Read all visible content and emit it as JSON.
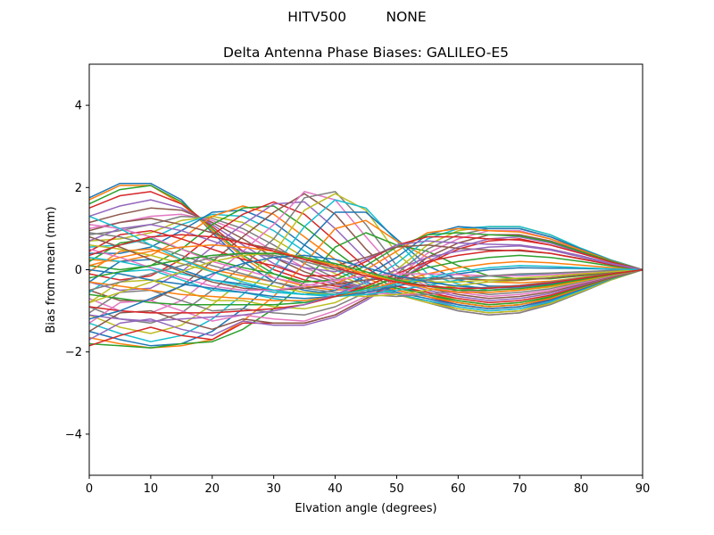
{
  "suptitle": "HITV500         NONE",
  "chart_data": {
    "type": "line",
    "title": "Delta Antenna Phase Biases: GALILEO-E5",
    "xlabel": "Elvation angle (degrees)",
    "ylabel": "Bias from mean (mm)",
    "xlim": [
      0,
      90
    ],
    "ylim": [
      -5,
      5
    ],
    "xticks": [
      0,
      10,
      20,
      30,
      40,
      50,
      60,
      70,
      80,
      90
    ],
    "yticks": [
      -4,
      -2,
      0,
      2,
      4
    ],
    "ytick_labels": [
      "−4",
      "−2",
      "0",
      "2",
      "4"
    ],
    "grid": false,
    "legend": "none",
    "x": [
      0,
      5,
      10,
      15,
      20,
      25,
      30,
      35,
      40,
      45,
      50,
      55,
      60,
      65,
      70,
      75,
      80,
      85,
      90
    ],
    "colors": [
      "#1f77b4",
      "#ff7f0e",
      "#2ca02c",
      "#d62728",
      "#9467bd",
      "#8c564b",
      "#e377c2",
      "#7f7f7f",
      "#bcbd22",
      "#17becf"
    ],
    "series": [
      {
        "values": [
          1.75,
          2.1,
          2.1,
          1.7,
          0.9,
          0.2,
          -0.3,
          -0.5,
          -0.6,
          -0.5,
          -0.4,
          -0.6,
          -0.8,
          -0.9,
          -0.85,
          -0.7,
          -0.45,
          -0.2,
          0
        ]
      },
      {
        "values": [
          1.7,
          2.05,
          2.05,
          1.6,
          0.95,
          0.3,
          -0.2,
          -0.4,
          -0.5,
          -0.45,
          -0.4,
          -0.55,
          -0.75,
          -0.85,
          -0.8,
          -0.65,
          -0.42,
          -0.18,
          0
        ]
      },
      {
        "values": [
          1.6,
          1.95,
          2.05,
          1.65,
          1.0,
          0.35,
          -0.1,
          -0.35,
          -0.45,
          -0.45,
          -0.45,
          -0.6,
          -0.8,
          -0.9,
          -0.85,
          -0.68,
          -0.44,
          -0.2,
          0
        ]
      },
      {
        "values": [
          1.5,
          1.8,
          1.9,
          1.6,
          1.05,
          0.45,
          0.0,
          -0.25,
          -0.4,
          -0.45,
          -0.5,
          -0.65,
          -0.85,
          -0.95,
          -0.9,
          -0.72,
          -0.46,
          -0.2,
          0
        ]
      },
      {
        "values": [
          1.3,
          1.55,
          1.7,
          1.5,
          1.1,
          0.6,
          0.15,
          -0.15,
          -0.35,
          -0.45,
          -0.55,
          -0.7,
          -0.9,
          -1.0,
          -0.95,
          -0.75,
          -0.48,
          -0.22,
          0
        ]
      },
      {
        "values": [
          1.15,
          1.35,
          1.5,
          1.45,
          1.15,
          0.75,
          0.3,
          -0.05,
          -0.3,
          -0.45,
          -0.6,
          -0.75,
          -0.95,
          -1.05,
          -1.0,
          -0.8,
          -0.5,
          -0.22,
          0
        ]
      },
      {
        "values": [
          1.0,
          1.15,
          1.3,
          1.35,
          1.2,
          0.9,
          0.45,
          0.05,
          -0.25,
          -0.45,
          -0.6,
          -0.8,
          -1.0,
          -1.1,
          -1.05,
          -0.82,
          -0.52,
          -0.23,
          0
        ]
      },
      {
        "values": [
          0.85,
          0.95,
          1.1,
          1.3,
          1.25,
          1.0,
          0.6,
          0.15,
          -0.2,
          -0.45,
          -0.6,
          -0.8,
          -1.0,
          -1.1,
          -1.05,
          -0.85,
          -0.55,
          -0.24,
          0
        ]
      },
      {
        "values": [
          0.7,
          0.75,
          0.9,
          1.2,
          1.3,
          1.15,
          0.75,
          0.3,
          -0.1,
          -0.4,
          -0.6,
          -0.8,
          -0.95,
          -1.05,
          -1.0,
          -0.82,
          -0.53,
          -0.24,
          0
        ]
      },
      {
        "values": [
          0.55,
          0.6,
          0.75,
          1.1,
          1.35,
          1.3,
          0.95,
          0.45,
          0.0,
          -0.35,
          -0.6,
          -0.75,
          -0.9,
          -1.0,
          -0.95,
          -0.78,
          -0.5,
          -0.22,
          0
        ]
      },
      {
        "values": [
          0.4,
          0.4,
          0.55,
          0.95,
          1.4,
          1.45,
          1.15,
          0.6,
          0.1,
          -0.3,
          -0.55,
          -0.7,
          -0.85,
          -0.95,
          -0.9,
          -0.74,
          -0.48,
          -0.21,
          0
        ]
      },
      {
        "values": [
          0.25,
          0.2,
          0.35,
          0.75,
          1.3,
          1.55,
          1.35,
          0.8,
          0.25,
          -0.2,
          -0.5,
          -0.65,
          -0.8,
          -0.9,
          -0.85,
          -0.7,
          -0.45,
          -0.2,
          0
        ]
      },
      {
        "values": [
          0.1,
          0.0,
          0.1,
          0.5,
          1.1,
          1.5,
          1.55,
          1.05,
          0.45,
          -0.1,
          -0.45,
          -0.6,
          -0.75,
          -0.85,
          -0.8,
          -0.66,
          -0.43,
          -0.19,
          0
        ]
      },
      {
        "values": [
          -0.1,
          -0.25,
          -0.15,
          0.25,
          0.85,
          1.35,
          1.65,
          1.35,
          0.7,
          0.05,
          -0.4,
          -0.55,
          -0.7,
          -0.8,
          -0.75,
          -0.62,
          -0.4,
          -0.18,
          0
        ]
      },
      {
        "values": [
          -0.3,
          -0.5,
          -0.45,
          -0.05,
          0.55,
          1.1,
          1.6,
          1.65,
          1.0,
          0.25,
          -0.3,
          -0.5,
          -0.65,
          -0.75,
          -0.7,
          -0.58,
          -0.38,
          -0.17,
          0
        ]
      },
      {
        "values": [
          -0.5,
          -0.75,
          -0.75,
          -0.4,
          0.2,
          0.8,
          1.4,
          1.85,
          1.35,
          0.5,
          -0.2,
          -0.45,
          -0.6,
          -0.7,
          -0.65,
          -0.54,
          -0.35,
          -0.16,
          0
        ]
      },
      {
        "values": [
          -0.7,
          -1.0,
          -1.05,
          -0.75,
          -0.15,
          0.45,
          1.1,
          1.9,
          1.7,
          0.8,
          -0.05,
          -0.4,
          -0.55,
          -0.65,
          -0.6,
          -0.5,
          -0.33,
          -0.15,
          0
        ]
      },
      {
        "values": [
          -0.9,
          -1.2,
          -1.3,
          -1.05,
          -0.5,
          0.1,
          0.75,
          1.75,
          1.9,
          1.1,
          0.1,
          -0.35,
          -0.5,
          -0.6,
          -0.55,
          -0.46,
          -0.3,
          -0.14,
          0
        ]
      },
      {
        "values": [
          -1.1,
          -1.4,
          -1.55,
          -1.35,
          -0.85,
          -0.25,
          0.4,
          1.45,
          1.85,
          1.45,
          0.4,
          -0.25,
          -0.45,
          -0.55,
          -0.5,
          -0.42,
          -0.28,
          -0.13,
          0
        ]
      },
      {
        "values": [
          -1.3,
          -1.55,
          -1.75,
          -1.6,
          -1.2,
          -0.6,
          0.05,
          1.05,
          1.7,
          1.5,
          0.7,
          -0.1,
          -0.35,
          -0.5,
          -0.45,
          -0.38,
          -0.25,
          -0.12,
          0
        ]
      },
      {
        "values": [
          -1.5,
          -1.7,
          -1.85,
          -1.8,
          -1.5,
          -0.95,
          -0.3,
          0.6,
          1.4,
          1.4,
          0.75,
          0.1,
          -0.25,
          -0.4,
          -0.4,
          -0.33,
          -0.22,
          -0.1,
          0
        ]
      },
      {
        "values": [
          -1.65,
          -1.8,
          -1.9,
          -1.85,
          -1.7,
          -1.25,
          -0.65,
          0.15,
          1.0,
          1.2,
          0.7,
          0.3,
          -0.1,
          -0.3,
          -0.32,
          -0.28,
          -0.19,
          -0.09,
          0
        ]
      },
      {
        "values": [
          -1.8,
          -1.85,
          -1.9,
          -1.8,
          -1.75,
          -1.45,
          -0.95,
          -0.3,
          0.55,
          0.9,
          0.6,
          0.45,
          0.1,
          -0.15,
          -0.22,
          -0.22,
          -0.15,
          -0.07,
          0
        ]
      },
      {
        "values": [
          -1.85,
          -1.6,
          -1.4,
          -1.6,
          -1.7,
          -1.3,
          -1.3,
          -1.3,
          -1.1,
          -0.7,
          -0.3,
          0.15,
          0.5,
          0.7,
          0.75,
          0.6,
          0.4,
          0.18,
          0
        ]
      },
      {
        "values": [
          -1.7,
          -1.3,
          -1.2,
          -1.45,
          -1.6,
          -1.25,
          -1.35,
          -1.35,
          -1.15,
          -0.75,
          -0.3,
          0.2,
          0.55,
          0.75,
          0.8,
          0.65,
          0.42,
          0.19,
          0
        ]
      },
      {
        "values": [
          -1.5,
          -1.05,
          -1.0,
          -1.25,
          -1.45,
          -1.2,
          -1.3,
          -1.3,
          -1.1,
          -0.7,
          -0.25,
          0.3,
          0.65,
          0.85,
          0.85,
          0.7,
          0.45,
          0.2,
          0
        ]
      },
      {
        "values": [
          -1.3,
          -0.8,
          -0.75,
          -1.0,
          -1.25,
          -1.1,
          -1.2,
          -1.25,
          -1.0,
          -0.65,
          -0.2,
          0.4,
          0.75,
          0.95,
          0.95,
          0.75,
          0.48,
          0.21,
          0
        ]
      },
      {
        "values": [
          -1.05,
          -0.55,
          -0.5,
          -0.75,
          -1.0,
          -0.95,
          -1.05,
          -1.1,
          -0.9,
          -0.55,
          -0.1,
          0.5,
          0.85,
          1.0,
          1.0,
          0.8,
          0.5,
          0.22,
          0
        ]
      },
      {
        "values": [
          -0.8,
          -0.3,
          -0.25,
          -0.5,
          -0.75,
          -0.75,
          -0.9,
          -0.95,
          -0.8,
          -0.45,
          0.0,
          0.6,
          0.95,
          1.05,
          1.05,
          0.85,
          0.52,
          0.23,
          0
        ]
      },
      {
        "values": [
          -0.55,
          -0.05,
          0.0,
          -0.25,
          -0.5,
          -0.55,
          -0.7,
          -0.8,
          -0.65,
          -0.3,
          0.15,
          0.75,
          1.0,
          1.05,
          1.05,
          0.85,
          0.52,
          0.23,
          0
        ]
      },
      {
        "values": [
          -0.3,
          0.2,
          0.25,
          0.0,
          -0.25,
          -0.35,
          -0.5,
          -0.6,
          -0.5,
          -0.15,
          0.3,
          0.85,
          1.05,
          1.0,
          1.0,
          0.8,
          0.5,
          0.22,
          0
        ]
      },
      {
        "values": [
          -0.05,
          0.45,
          0.5,
          0.25,
          0.0,
          -0.15,
          -0.3,
          -0.45,
          -0.35,
          0.0,
          0.45,
          0.9,
          1.0,
          0.95,
          0.92,
          0.75,
          0.48,
          0.21,
          0
        ]
      },
      {
        "values": [
          0.2,
          0.65,
          0.75,
          0.5,
          0.25,
          0.05,
          -0.1,
          -0.3,
          -0.25,
          0.1,
          0.55,
          0.85,
          0.9,
          0.85,
          0.82,
          0.68,
          0.44,
          0.2,
          0
        ]
      },
      {
        "values": [
          0.45,
          0.85,
          0.95,
          0.75,
          0.5,
          0.25,
          0.1,
          -0.15,
          -0.15,
          0.2,
          0.6,
          0.8,
          0.8,
          0.75,
          0.72,
          0.6,
          0.4,
          0.18,
          0
        ]
      },
      {
        "values": [
          0.7,
          1.0,
          1.1,
          0.95,
          0.7,
          0.45,
          0.3,
          0.05,
          -0.05,
          0.25,
          0.6,
          0.7,
          0.65,
          0.62,
          0.6,
          0.5,
          0.34,
          0.15,
          0
        ]
      },
      {
        "values": [
          0.95,
          1.15,
          1.25,
          1.1,
          0.9,
          0.65,
          0.5,
          0.25,
          0.1,
          0.3,
          0.55,
          0.6,
          0.52,
          0.48,
          0.46,
          0.4,
          0.27,
          0.12,
          0
        ]
      },
      {
        "values": [
          1.1,
          1.0,
          0.8,
          0.5,
          0.2,
          0.0,
          -0.2,
          -0.35,
          -0.45,
          -0.55,
          -0.6,
          -0.6,
          -0.55,
          -0.5,
          -0.45,
          -0.36,
          -0.24,
          -0.11,
          0
        ]
      },
      {
        "values": [
          0.9,
          0.8,
          0.6,
          0.35,
          0.1,
          -0.1,
          -0.3,
          -0.45,
          -0.55,
          -0.6,
          -0.65,
          -0.6,
          -0.5,
          -0.42,
          -0.38,
          -0.3,
          -0.2,
          -0.09,
          0
        ]
      },
      {
        "values": [
          0.6,
          0.5,
          0.35,
          0.15,
          -0.05,
          -0.25,
          -0.4,
          -0.55,
          -0.6,
          -0.65,
          -0.6,
          -0.5,
          -0.38,
          -0.3,
          -0.26,
          -0.2,
          -0.13,
          -0.06,
          0
        ]
      },
      {
        "values": [
          0.3,
          0.2,
          0.05,
          -0.1,
          -0.25,
          -0.4,
          -0.55,
          -0.6,
          -0.65,
          -0.6,
          -0.5,
          -0.38,
          -0.25,
          -0.15,
          -0.12,
          -0.1,
          -0.06,
          -0.03,
          0
        ]
      },
      {
        "values": [
          0.0,
          -0.1,
          -0.25,
          -0.35,
          -0.45,
          -0.55,
          -0.65,
          -0.7,
          -0.65,
          -0.55,
          -0.4,
          -0.25,
          -0.1,
          0.0,
          0.05,
          0.04,
          0.03,
          0.01,
          0
        ]
      },
      {
        "values": [
          -0.3,
          -0.4,
          -0.5,
          -0.6,
          -0.65,
          -0.7,
          -0.75,
          -0.75,
          -0.65,
          -0.5,
          -0.3,
          -0.1,
          0.05,
          0.15,
          0.2,
          0.17,
          0.11,
          0.05,
          0
        ]
      },
      {
        "values": [
          -0.6,
          -0.7,
          -0.8,
          -0.85,
          -0.85,
          -0.85,
          -0.85,
          -0.8,
          -0.65,
          -0.45,
          -0.2,
          0.05,
          0.2,
          0.3,
          0.35,
          0.3,
          0.2,
          0.09,
          0
        ]
      },
      {
        "values": [
          -0.9,
          -1.0,
          -1.05,
          -1.05,
          -1.05,
          -1.0,
          -0.95,
          -0.85,
          -0.65,
          -0.4,
          -0.1,
          0.2,
          0.35,
          0.45,
          0.48,
          0.4,
          0.26,
          0.12,
          0
        ]
      },
      {
        "values": [
          -1.1,
          -1.2,
          -1.25,
          -1.2,
          -1.15,
          -1.1,
          -1.0,
          -0.85,
          -0.6,
          -0.3,
          0.0,
          0.3,
          0.45,
          0.55,
          0.58,
          0.48,
          0.31,
          0.14,
          0
        ]
      },
      {
        "values": [
          0.8,
          0.55,
          0.25,
          -0.05,
          -0.3,
          -0.45,
          -0.5,
          -0.45,
          -0.35,
          -0.25,
          -0.2,
          -0.2,
          -0.22,
          -0.25,
          -0.25,
          -0.2,
          -0.13,
          -0.06,
          0
        ]
      },
      {
        "values": [
          0.5,
          0.3,
          0.05,
          -0.2,
          -0.4,
          -0.5,
          -0.5,
          -0.4,
          -0.25,
          -0.15,
          -0.1,
          -0.1,
          -0.12,
          -0.15,
          -0.15,
          -0.12,
          -0.08,
          -0.04,
          0
        ]
      },
      {
        "values": [
          -0.5,
          -0.3,
          -0.1,
          0.1,
          0.3,
          0.4,
          0.35,
          0.2,
          0.0,
          -0.15,
          -0.25,
          -0.25,
          -0.2,
          -0.15,
          -0.1,
          -0.08,
          -0.05,
          -0.02,
          0
        ]
      },
      {
        "values": [
          -0.8,
          -0.55,
          -0.3,
          -0.05,
          0.2,
          0.35,
          0.4,
          0.3,
          0.1,
          -0.1,
          -0.25,
          -0.3,
          -0.3,
          -0.25,
          -0.2,
          -0.16,
          -0.1,
          -0.05,
          0
        ]
      },
      {
        "values": [
          1.3,
          1.0,
          0.6,
          0.25,
          -0.05,
          -0.3,
          -0.5,
          -0.6,
          -0.6,
          -0.5,
          -0.35,
          -0.2,
          -0.05,
          0.05,
          0.1,
          0.08,
          0.05,
          0.02,
          0
        ]
      },
      {
        "values": [
          -1.2,
          -1.0,
          -0.7,
          -0.4,
          -0.1,
          0.15,
          0.3,
          0.35,
          0.25,
          0.05,
          -0.15,
          -0.3,
          -0.4,
          -0.45,
          -0.42,
          -0.34,
          -0.22,
          -0.1,
          0
        ]
      },
      {
        "values": [
          0.1,
          0.3,
          0.45,
          0.55,
          0.6,
          0.55,
          0.45,
          0.3,
          0.1,
          -0.1,
          -0.3,
          -0.45,
          -0.55,
          -0.55,
          -0.5,
          -0.4,
          -0.26,
          -0.12,
          0
        ]
      },
      {
        "values": [
          -0.2,
          -0.05,
          0.1,
          0.25,
          0.35,
          0.4,
          0.4,
          0.3,
          0.15,
          -0.05,
          -0.25,
          -0.4,
          -0.5,
          -0.5,
          -0.46,
          -0.37,
          -0.24,
          -0.11,
          0
        ]
      },
      {
        "values": [
          0.35,
          0.6,
          0.8,
          0.85,
          0.8,
          0.65,
          0.45,
          0.25,
          0.05,
          -0.15,
          -0.3,
          -0.4,
          -0.45,
          -0.45,
          -0.4,
          -0.32,
          -0.21,
          -0.1,
          0
        ]
      }
    ]
  }
}
